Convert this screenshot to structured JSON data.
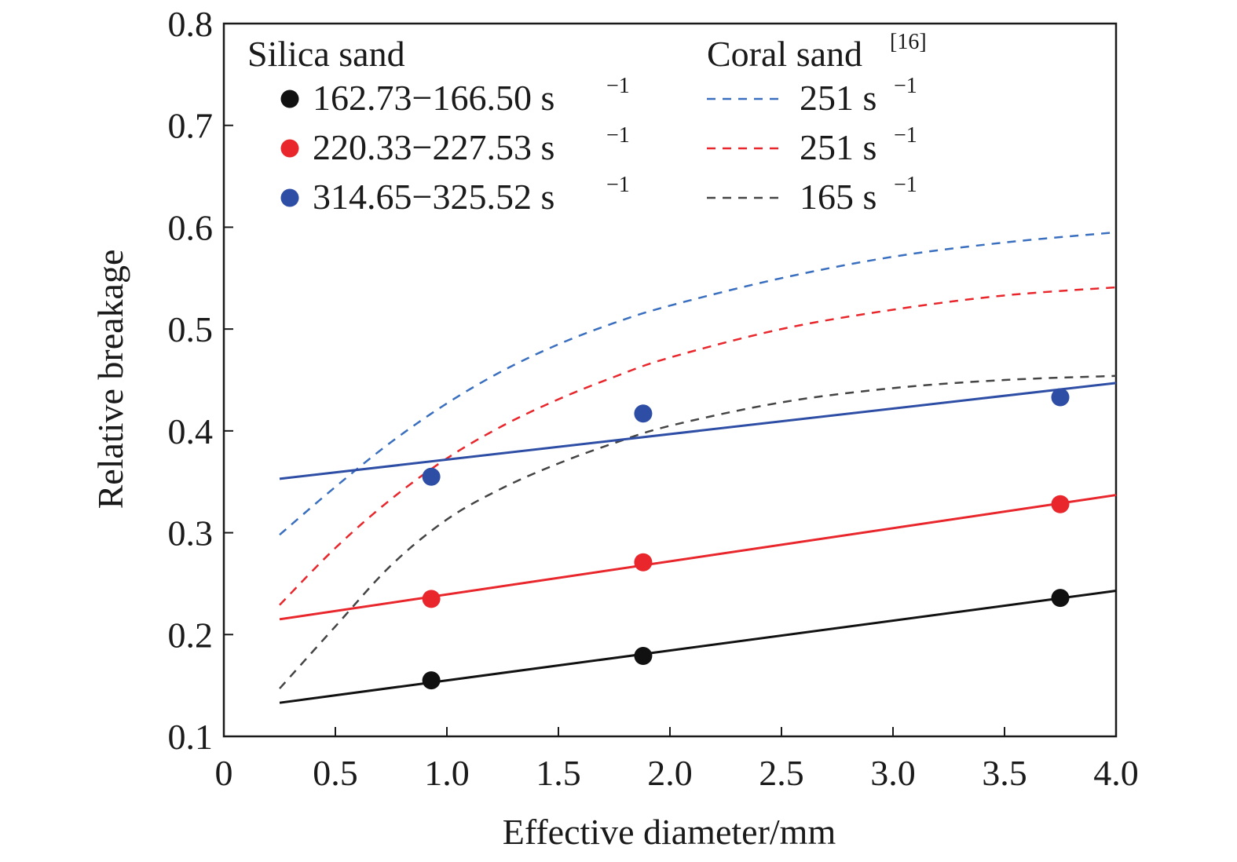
{
  "chart_data": {
    "type": "scatter",
    "title": "",
    "xlabel": "Effective diameter/mm",
    "ylabel": "Relative breakage",
    "xlim": [
      0,
      4.0
    ],
    "ylim": [
      0.1,
      0.8
    ],
    "x_ticks": [
      0,
      0.5,
      1.0,
      1.5,
      2.0,
      2.5,
      3.0,
      3.5,
      4.0
    ],
    "x_tick_labels": [
      "0",
      "0.5",
      "1.0",
      "1.5",
      "2.0",
      "2.5",
      "3.0",
      "3.5",
      "4.0"
    ],
    "y_ticks": [
      0.1,
      0.2,
      0.3,
      0.4,
      0.5,
      0.6,
      0.7,
      0.8
    ],
    "y_tick_labels": [
      "0.1",
      "0.2",
      "0.3",
      "0.4",
      "0.5",
      "0.6",
      "0.7",
      "0.8"
    ],
    "grid": false,
    "legend_placement": "top",
    "legend_groups": [
      {
        "title": "Silica sand",
        "title_sup": ""
      },
      {
        "title": "Coral sand",
        "title_sup": "[16]"
      }
    ],
    "scatter_series": [
      {
        "name": "162.73−166.50 s",
        "unit_sup": "−1",
        "color": "#111111",
        "x": [
          0.93,
          1.88,
          3.75
        ],
        "y": [
          0.155,
          0.179,
          0.236
        ],
        "fit": {
          "x": [
            0.25,
            4.0
          ],
          "y": [
            0.133,
            0.243
          ]
        }
      },
      {
        "name": "220.33−227.53 s",
        "unit_sup": "−1",
        "color": "#e8262b",
        "x": [
          0.93,
          1.88,
          3.75
        ],
        "y": [
          0.235,
          0.271,
          0.328
        ],
        "fit": {
          "x": [
            0.25,
            4.0
          ],
          "y": [
            0.215,
            0.337
          ]
        }
      },
      {
        "name": "314.65−325.52 s",
        "unit_sup": "−1",
        "color": "#2e4ea6",
        "x": [
          0.93,
          1.88,
          3.75
        ],
        "y": [
          0.355,
          0.417,
          0.433
        ],
        "fit": {
          "x": [
            0.25,
            4.0
          ],
          "y": [
            0.353,
            0.447
          ]
        }
      }
    ],
    "dashed_series": [
      {
        "name": "251 s",
        "unit_sup": "−1",
        "color": "#3a6fbf",
        "x": [
          0.25,
          0.5,
          0.75,
          1.0,
          1.25,
          1.5,
          1.75,
          2.0,
          2.5,
          3.0,
          3.5,
          4.0
        ],
        "y": [
          0.298,
          0.345,
          0.389,
          0.427,
          0.459,
          0.485,
          0.506,
          0.523,
          0.55,
          0.571,
          0.585,
          0.595
        ]
      },
      {
        "name": "251 s",
        "unit_sup": "−1",
        "color": "#e8262b",
        "x": [
          0.25,
          0.5,
          0.75,
          1.0,
          1.25,
          1.5,
          1.75,
          2.0,
          2.5,
          3.0,
          3.5,
          4.0
        ],
        "y": [
          0.229,
          0.285,
          0.333,
          0.373,
          0.405,
          0.431,
          0.453,
          0.472,
          0.5,
          0.519,
          0.533,
          0.541
        ]
      },
      {
        "name": "165 s",
        "unit_sup": "−1",
        "color": "#444444",
        "x": [
          0.25,
          0.5,
          0.75,
          1.0,
          1.25,
          1.5,
          1.75,
          2.0,
          2.5,
          3.0,
          3.5,
          4.0
        ],
        "y": [
          0.147,
          0.208,
          0.268,
          0.313,
          0.344,
          0.368,
          0.388,
          0.405,
          0.428,
          0.442,
          0.45,
          0.454
        ]
      }
    ]
  }
}
